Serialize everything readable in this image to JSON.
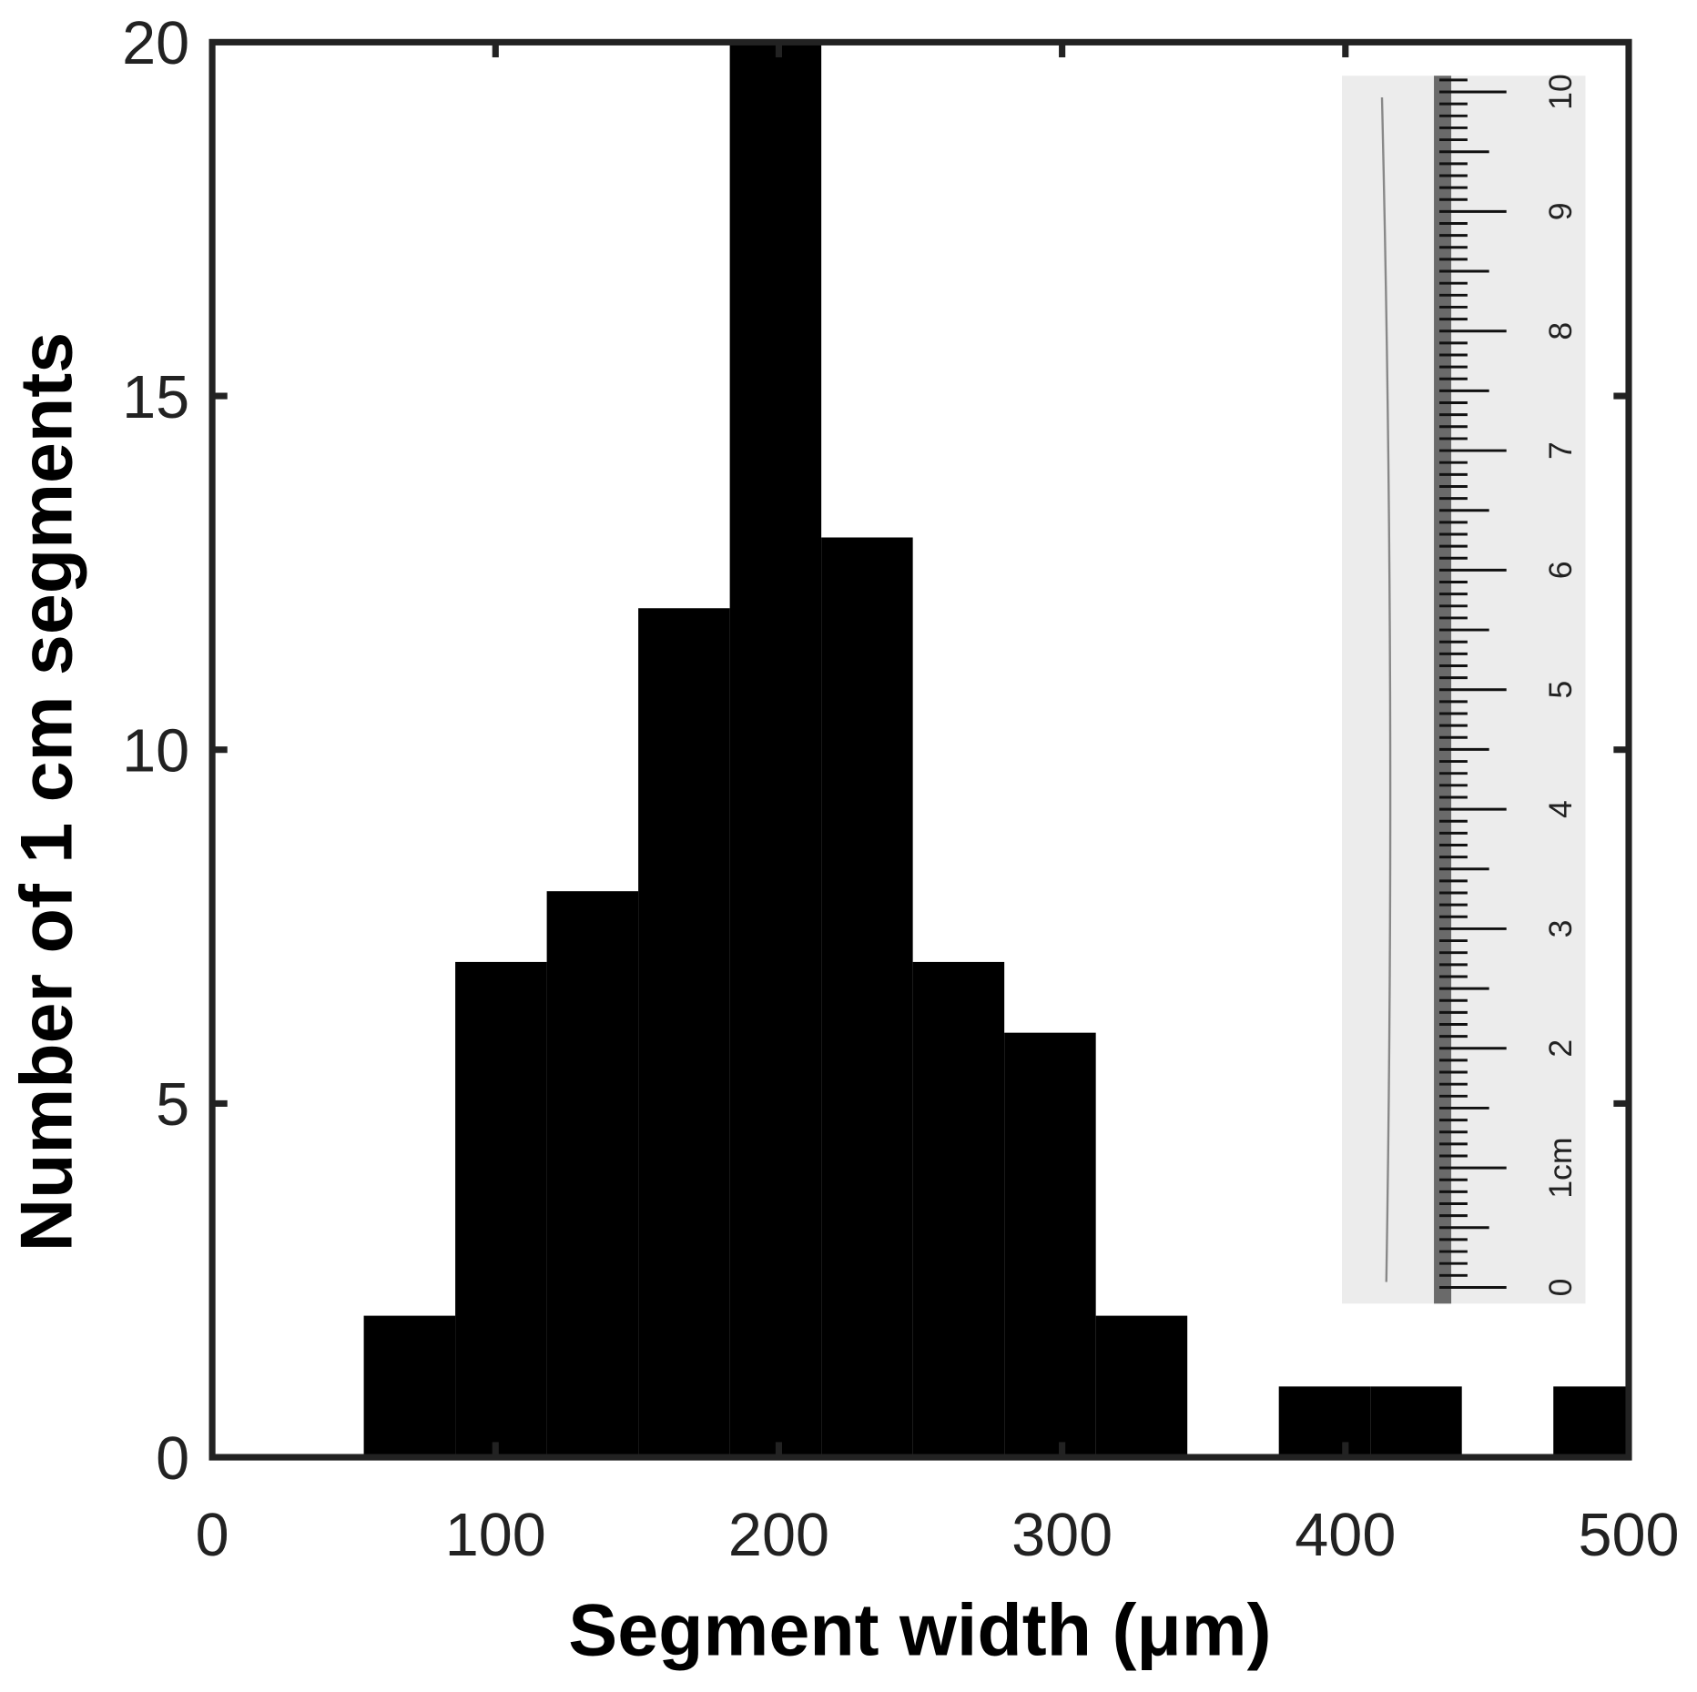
{
  "chart_data": {
    "type": "bar",
    "subtype": "histogram",
    "title": "",
    "xlabel": "Segment width (μm)",
    "ylabel": "Number of 1 cm segments",
    "xlim": [
      0,
      500
    ],
    "ylim": [
      0,
      20
    ],
    "xticks": [
      "0",
      "100",
      "200",
      "300",
      "400",
      "500"
    ],
    "yticks": [
      "0",
      "5",
      "10",
      "15",
      "20"
    ],
    "grid": false,
    "bar_color": "#000000",
    "bin_edges": [
      53.5,
      85.8,
      118.1,
      150.4,
      182.7,
      215.0,
      247.3,
      279.6,
      311.9,
      344.2,
      376.5,
      408.8,
      441.1,
      473.4,
      505.7
    ],
    "counts": [
      2,
      7,
      8,
      12,
      20,
      13,
      7,
      6,
      2,
      0,
      1,
      1,
      0,
      1
    ],
    "inset": {
      "description_type": "photo-of-fiber-with-ruler",
      "ruler_labels": [
        "0",
        "1cm",
        "2",
        "3",
        "4",
        "5",
        "6",
        "7",
        "8",
        "9",
        "10"
      ]
    }
  }
}
